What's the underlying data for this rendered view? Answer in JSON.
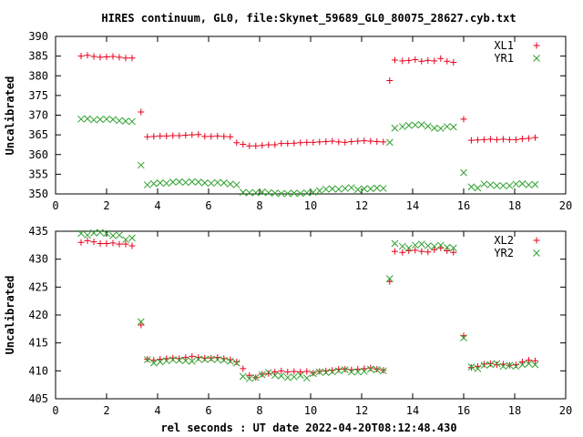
{
  "title": "HIRES continuum, GL0, file:Skynet_59689_GL0_80075_28627.cyb.txt",
  "xlabel": "rel seconds : UT date 2022-04-20T08:12:48.430",
  "chart_data": [
    {
      "type": "scatter",
      "ylabel": "Uncalibrated",
      "xlim": [
        0,
        20
      ],
      "ylim": [
        350,
        390
      ],
      "x_ticks": [
        0,
        2,
        4,
        6,
        8,
        10,
        12,
        14,
        16,
        18,
        20
      ],
      "y_ticks": [
        350,
        355,
        360,
        365,
        370,
        375,
        380,
        385,
        390
      ],
      "legend_position": "top-right",
      "series": [
        {
          "name": "XL1",
          "color": "#e8001c",
          "marker": "plus",
          "x": [
            1.0,
            1.25,
            1.5,
            1.75,
            2.0,
            2.25,
            2.5,
            2.75,
            3.0,
            3.35,
            3.6,
            3.85,
            4.1,
            4.35,
            4.6,
            4.85,
            5.1,
            5.35,
            5.6,
            5.85,
            6.1,
            6.35,
            6.6,
            6.85,
            7.1,
            7.35,
            7.6,
            7.85,
            8.1,
            8.35,
            8.6,
            8.85,
            9.1,
            9.35,
            9.6,
            9.85,
            10.1,
            10.35,
            10.6,
            10.85,
            11.1,
            11.35,
            11.6,
            11.85,
            12.1,
            12.35,
            12.6,
            12.85,
            13.1,
            13.3,
            13.6,
            13.85,
            14.1,
            14.35,
            14.6,
            14.85,
            15.1,
            15.35,
            15.6,
            16.0,
            16.3,
            16.55,
            16.8,
            17.05,
            17.3,
            17.55,
            17.8,
            18.05,
            18.3,
            18.55,
            18.8
          ],
          "y": [
            385,
            385.2,
            384.9,
            384.7,
            384.8,
            384.9,
            384.7,
            384.5,
            384.5,
            370.8,
            364.5,
            364.6,
            364.7,
            364.7,
            364.8,
            364.8,
            364.9,
            365.0,
            365.1,
            364.6,
            364.6,
            364.7,
            364.6,
            364.5,
            363.0,
            362.6,
            362.2,
            362.2,
            362.3,
            362.5,
            362.5,
            362.8,
            362.8,
            362.9,
            363.0,
            363.1,
            363.1,
            363.2,
            363.3,
            363.4,
            363.2,
            363.1,
            363.3,
            363.4,
            363.5,
            363.4,
            363.3,
            363.2,
            378.8,
            384.0,
            383.8,
            383.9,
            384.1,
            383.7,
            383.9,
            383.8,
            384.4,
            383.7,
            383.4,
            369.0,
            363.6,
            363.7,
            363.8,
            363.9,
            363.8,
            363.9,
            363.8,
            363.8,
            364.0,
            364.1,
            364.3
          ]
        },
        {
          "name": "YR1",
          "color": "#2ca02c",
          "marker": "x",
          "x": [
            1.0,
            1.25,
            1.5,
            1.75,
            2.0,
            2.25,
            2.5,
            2.75,
            3.0,
            3.35,
            3.6,
            3.85,
            4.1,
            4.35,
            4.6,
            4.85,
            5.1,
            5.35,
            5.6,
            5.85,
            6.1,
            6.35,
            6.6,
            6.85,
            7.1,
            7.35,
            7.6,
            7.85,
            8.1,
            8.35,
            8.6,
            8.85,
            9.1,
            9.35,
            9.6,
            9.85,
            10.1,
            10.35,
            10.6,
            10.85,
            11.1,
            11.35,
            11.6,
            11.85,
            12.1,
            12.35,
            12.6,
            12.85,
            13.1,
            13.3,
            13.6,
            13.85,
            14.1,
            14.35,
            14.6,
            14.85,
            15.1,
            15.35,
            15.6,
            16.0,
            16.3,
            16.55,
            16.8,
            17.05,
            17.3,
            17.55,
            17.8,
            18.05,
            18.3,
            18.55,
            18.8
          ],
          "y": [
            369.0,
            369.1,
            368.8,
            368.9,
            369.0,
            368.9,
            368.6,
            368.5,
            368.4,
            357.3,
            352.3,
            352.6,
            352.8,
            352.7,
            353.0,
            353.1,
            352.9,
            353.1,
            353.0,
            352.8,
            352.7,
            352.9,
            352.8,
            352.5,
            352.3,
            350.4,
            350.3,
            350.3,
            350.5,
            350.3,
            350.2,
            350.1,
            350.1,
            350.2,
            350.1,
            350.3,
            350.4,
            350.8,
            351.2,
            351.3,
            351.2,
            351.4,
            351.6,
            351.1,
            351.3,
            351.3,
            351.5,
            351.4,
            363.1,
            366.7,
            367.1,
            367.4,
            367.5,
            367.6,
            367.2,
            366.7,
            366.6,
            367.1,
            367.0,
            355.4,
            351.8,
            351.5,
            352.5,
            352.3,
            352.1,
            352.1,
            352.1,
            352.5,
            352.6,
            352.3,
            352.4
          ]
        }
      ]
    },
    {
      "type": "scatter",
      "ylabel": "Uncalibrated",
      "xlim": [
        0,
        20
      ],
      "ylim": [
        405,
        435
      ],
      "x_ticks": [
        0,
        2,
        4,
        6,
        8,
        10,
        12,
        14,
        16,
        18,
        20
      ],
      "y_ticks": [
        405,
        410,
        415,
        420,
        425,
        430,
        435
      ],
      "legend_position": "top-right",
      "series": [
        {
          "name": "XL2",
          "color": "#e8001c",
          "marker": "plus",
          "x": [
            1.0,
            1.25,
            1.5,
            1.75,
            2.0,
            2.25,
            2.5,
            2.75,
            3.0,
            3.35,
            3.6,
            3.85,
            4.1,
            4.35,
            4.6,
            4.85,
            5.1,
            5.35,
            5.6,
            5.85,
            6.1,
            6.35,
            6.6,
            6.85,
            7.1,
            7.35,
            7.6,
            7.85,
            8.1,
            8.35,
            8.6,
            8.85,
            9.1,
            9.35,
            9.6,
            9.85,
            10.1,
            10.35,
            10.6,
            10.85,
            11.1,
            11.35,
            11.6,
            11.85,
            12.1,
            12.35,
            12.6,
            12.85,
            13.1,
            13.3,
            13.6,
            13.85,
            14.1,
            14.35,
            14.6,
            14.85,
            15.1,
            15.35,
            15.6,
            16.0,
            16.3,
            16.55,
            16.8,
            17.05,
            17.3,
            17.55,
            17.8,
            18.05,
            18.3,
            18.55,
            18.8
          ],
          "y": [
            433.0,
            433.3,
            433.1,
            432.8,
            432.8,
            432.9,
            432.7,
            432.7,
            432.4,
            418.2,
            412.1,
            411.9,
            412.1,
            412.2,
            412.3,
            412.2,
            412.4,
            412.6,
            412.4,
            412.3,
            412.3,
            412.4,
            412.2,
            412.0,
            411.6,
            410.4,
            409.2,
            408.8,
            409.4,
            409.5,
            409.8,
            410.0,
            409.8,
            409.9,
            409.8,
            409.9,
            409.6,
            409.9,
            410.0,
            410.1,
            410.3,
            410.3,
            410.2,
            410.3,
            410.4,
            410.5,
            410.3,
            410.1,
            426.0,
            431.4,
            431.2,
            431.5,
            431.6,
            431.4,
            431.3,
            431.7,
            432.0,
            431.5,
            431.2,
            416.3,
            410.6,
            410.8,
            411.2,
            411.3,
            411.1,
            411.2,
            411.0,
            411.1,
            411.6,
            411.9,
            411.8
          ]
        },
        {
          "name": "YR2",
          "color": "#2ca02c",
          "marker": "x",
          "x": [
            1.0,
            1.25,
            1.5,
            1.75,
            2.0,
            2.25,
            2.5,
            2.75,
            3.0,
            3.35,
            3.6,
            3.85,
            4.1,
            4.35,
            4.6,
            4.85,
            5.1,
            5.35,
            5.6,
            5.85,
            6.1,
            6.35,
            6.6,
            6.85,
            7.1,
            7.35,
            7.6,
            7.85,
            8.1,
            8.35,
            8.6,
            8.85,
            9.1,
            9.35,
            9.6,
            9.85,
            10.1,
            10.35,
            10.6,
            10.85,
            11.1,
            11.35,
            11.6,
            11.85,
            12.1,
            12.35,
            12.6,
            12.85,
            13.1,
            13.3,
            13.6,
            13.85,
            14.1,
            14.35,
            14.6,
            14.85,
            15.1,
            15.35,
            15.6,
            16.0,
            16.3,
            16.55,
            16.8,
            17.05,
            17.3,
            17.55,
            17.8,
            18.05,
            18.3,
            18.55,
            18.8
          ],
          "y": [
            434.6,
            434.3,
            434.7,
            434.8,
            434.6,
            434.2,
            434.3,
            433.5,
            433.8,
            418.8,
            412.0,
            411.4,
            411.6,
            411.8,
            412.0,
            411.9,
            411.8,
            411.7,
            412.1,
            412.0,
            412.1,
            412.0,
            411.9,
            411.7,
            411.4,
            409.0,
            408.6,
            408.8,
            409.3,
            409.7,
            409.2,
            409.1,
            408.8,
            408.9,
            409.2,
            408.7,
            409.5,
            409.8,
            409.7,
            409.8,
            410.0,
            410.2,
            409.8,
            409.8,
            409.9,
            410.3,
            410.2,
            410.0,
            426.5,
            432.8,
            432.3,
            432.0,
            432.5,
            432.7,
            432.4,
            432.3,
            432.5,
            432.1,
            432.0,
            415.9,
            410.7,
            410.4,
            411.0,
            411.1,
            411.3,
            410.8,
            411.0,
            410.8,
            411.1,
            411.3,
            411.1
          ]
        }
      ]
    }
  ]
}
